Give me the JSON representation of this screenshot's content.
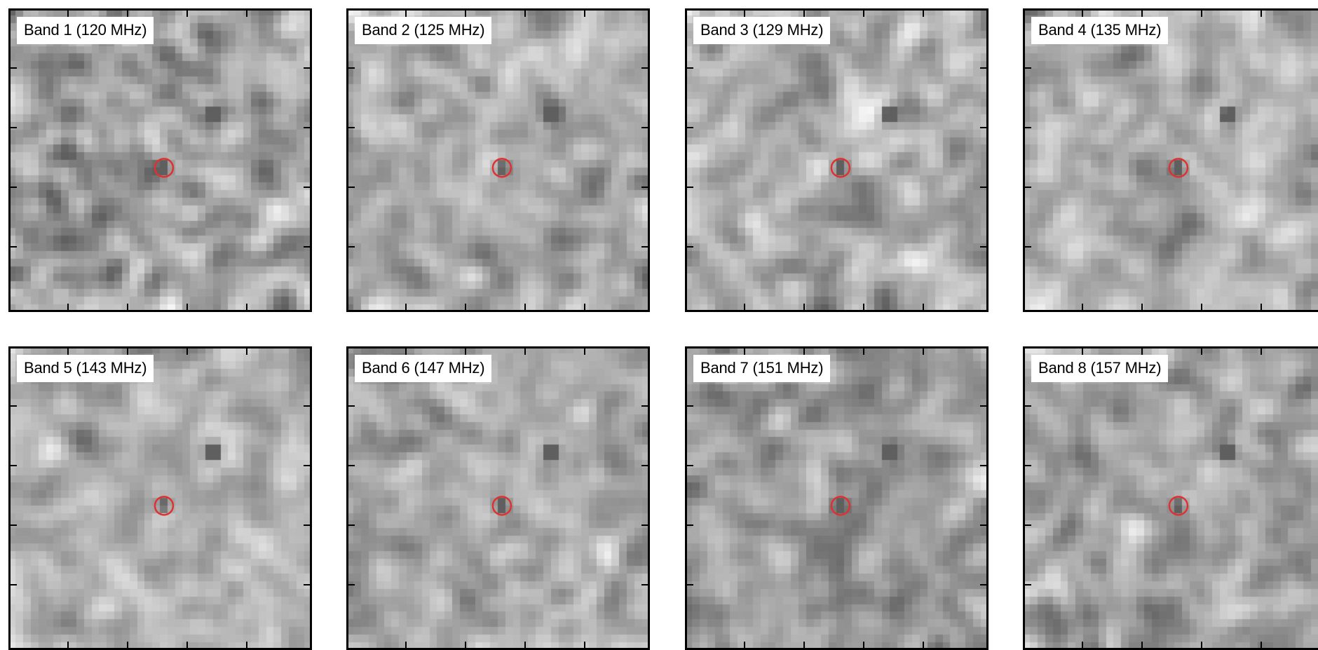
{
  "figure": {
    "panels": [
      {
        "label": "Band 1 (120 MHz)",
        "seed": 11,
        "contrast": 1.0
      },
      {
        "label": "Band 2 (125 MHz)",
        "seed": 23,
        "contrast": 0.95
      },
      {
        "label": "Band 3 (129 MHz)",
        "seed": 37,
        "contrast": 1.0
      },
      {
        "label": "Band 4 (135 MHz)",
        "seed": 41,
        "contrast": 0.9
      },
      {
        "label": "Band 5 (143 MHz)",
        "seed": 53,
        "contrast": 0.85
      },
      {
        "label": "Band 6 (147 MHz)",
        "seed": 67,
        "contrast": 0.9
      },
      {
        "label": "Band 7 (151 MHz)",
        "seed": 79,
        "contrast": 0.9
      },
      {
        "label": "Band 8 (157 MHz)",
        "seed": 83,
        "contrast": 0.85
      }
    ],
    "colormap": "gray_r",
    "marker_color": "#e03030",
    "frame_color": "#000000"
  }
}
